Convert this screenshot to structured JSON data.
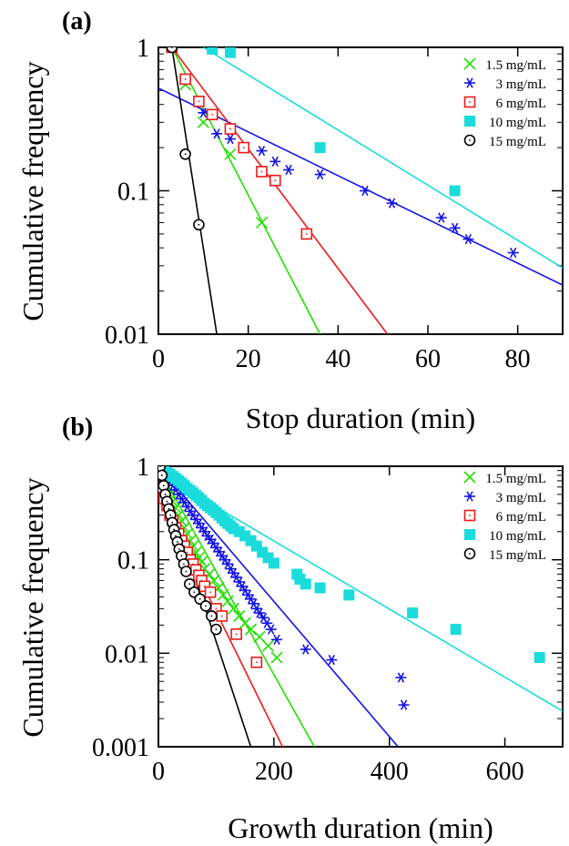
{
  "colors": {
    "s1_5": "#22e000",
    "s3": "#1414e6",
    "s6": "#ee1a1a",
    "s10": "#1adcdc",
    "s15": "#000000"
  },
  "chart_data": [
    {
      "type": "scatter",
      "panel_label": "(a)",
      "xlabel": "Stop duration (min)",
      "ylabel": "Cumulative frequency",
      "xlim": [
        0,
        90
      ],
      "ylim": [
        0.01,
        1
      ],
      "yscale": "log",
      "xticks": [
        0,
        20,
        40,
        60,
        80
      ],
      "xtick_labels": [
        "0",
        "20",
        "40",
        "60",
        "80"
      ],
      "yticks": [
        0.01,
        0.1,
        1
      ],
      "ytick_labels": [
        "0.01",
        "0.1",
        "1"
      ],
      "legend_position": "top-right",
      "series": [
        {
          "name": "1.5 mg/mL",
          "marker": "x",
          "color": "#22e000",
          "points": [
            [
              3,
              1.0
            ],
            [
              6,
              0.55
            ],
            [
              10,
              0.3
            ],
            [
              16,
              0.18
            ],
            [
              23,
              0.06
            ]
          ],
          "fit": [
            [
              3,
              1.0
            ],
            [
              36,
              0.01
            ]
          ]
        },
        {
          "name": "3 mg/mL",
          "marker": "star",
          "color": "#1414e6",
          "points": [
            [
              3,
              1.0
            ],
            [
              6,
              0.6
            ],
            [
              10,
              0.35
            ],
            [
              13,
              0.25
            ],
            [
              16,
              0.23
            ],
            [
              19,
              0.2
            ],
            [
              23,
              0.19
            ],
            [
              26,
              0.16
            ],
            [
              29,
              0.14
            ],
            [
              36,
              0.13
            ],
            [
              46,
              0.1
            ],
            [
              52,
              0.082
            ],
            [
              63,
              0.065
            ],
            [
              66,
              0.055
            ],
            [
              69,
              0.046
            ],
            [
              79,
              0.037
            ]
          ],
          "fit": [
            [
              0,
              0.52
            ],
            [
              90,
              0.022
            ]
          ]
        },
        {
          "name": "6 mg/mL",
          "marker": "square",
          "color": "#ee1a1a",
          "points": [
            [
              3,
              1.0
            ],
            [
              6,
              0.6
            ],
            [
              9,
              0.42
            ],
            [
              12,
              0.34
            ],
            [
              16,
              0.27
            ],
            [
              19,
              0.2
            ],
            [
              23,
              0.136
            ],
            [
              26,
              0.118
            ],
            [
              33,
              0.05
            ]
          ],
          "fit": [
            [
              3,
              1.0
            ],
            [
              51,
              0.01
            ]
          ]
        },
        {
          "name": "10 mg/mL",
          "marker": "filled-square",
          "color": "#1adcdc",
          "points": [
            [
              12,
              0.97
            ],
            [
              16,
              0.92
            ],
            [
              36,
              0.2
            ],
            [
              66,
              0.1
            ]
          ],
          "fit": [
            [
              10,
              1.0
            ],
            [
              90,
              0.029
            ]
          ]
        },
        {
          "name": "15 mg/mL",
          "marker": "circle",
          "color": "#000000",
          "points": [
            [
              3,
              1.0
            ],
            [
              6,
              0.18
            ],
            [
              9,
              0.058
            ]
          ],
          "fit": [
            [
              3,
              1.0
            ],
            [
              13,
              0.01
            ]
          ]
        }
      ]
    },
    {
      "type": "scatter",
      "panel_label": "(b)",
      "xlabel": "Growth duration (min)",
      "ylabel": "Cumulative frequency",
      "xlim": [
        0,
        700
      ],
      "ylim": [
        0.001,
        1
      ],
      "yscale": "log",
      "xticks": [
        0,
        200,
        400,
        600
      ],
      "xtick_labels": [
        "0",
        "200",
        "400",
        "600"
      ],
      "yticks": [
        0.001,
        0.01,
        0.1,
        1
      ],
      "ytick_labels": [
        "0.001",
        "0.01",
        "0.1",
        "1"
      ],
      "legend_position": "top-right",
      "series": [
        {
          "name": "1.5 mg/mL",
          "marker": "x",
          "color": "#22e000",
          "points": [
            [
              5,
              1.0
            ],
            [
              10,
              0.75
            ],
            [
              15,
              0.6
            ],
            [
              20,
              0.5
            ],
            [
              25,
              0.42
            ],
            [
              30,
              0.36
            ],
            [
              35,
              0.3
            ],
            [
              40,
              0.26
            ],
            [
              45,
              0.22
            ],
            [
              50,
              0.19
            ],
            [
              55,
              0.16
            ],
            [
              60,
              0.14
            ],
            [
              65,
              0.12
            ],
            [
              70,
              0.105
            ],
            [
              75,
              0.095
            ],
            [
              80,
              0.08
            ],
            [
              88,
              0.07
            ],
            [
              96,
              0.06
            ],
            [
              104,
              0.05
            ],
            [
              112,
              0.042
            ],
            [
              120,
              0.036
            ],
            [
              130,
              0.03
            ],
            [
              140,
              0.025
            ],
            [
              150,
              0.021
            ],
            [
              160,
              0.018
            ],
            [
              175,
              0.015
            ],
            [
              190,
              0.012
            ],
            [
              205,
              0.009
            ]
          ],
          "fit": [
            [
              0,
              0.95
            ],
            [
              270,
              0.001
            ]
          ]
        },
        {
          "name": "3 mg/mL",
          "marker": "star",
          "color": "#1414e6",
          "points": [
            [
              5,
              1.0
            ],
            [
              10,
              0.85
            ],
            [
              15,
              0.75
            ],
            [
              20,
              0.68
            ],
            [
              25,
              0.62
            ],
            [
              30,
              0.56
            ],
            [
              35,
              0.5
            ],
            [
              40,
              0.45
            ],
            [
              45,
              0.41
            ],
            [
              50,
              0.37
            ],
            [
              55,
              0.33
            ],
            [
              60,
              0.3
            ],
            [
              65,
              0.27
            ],
            [
              70,
              0.245
            ],
            [
              75,
              0.22
            ],
            [
              80,
              0.2
            ],
            [
              85,
              0.18
            ],
            [
              90,
              0.165
            ],
            [
              95,
              0.15
            ],
            [
              100,
              0.135
            ],
            [
              105,
              0.122
            ],
            [
              110,
              0.11
            ],
            [
              115,
              0.1
            ],
            [
              120,
              0.09
            ],
            [
              125,
              0.08
            ],
            [
              130,
              0.072
            ],
            [
              135,
              0.065
            ],
            [
              140,
              0.058
            ],
            [
              145,
              0.052
            ],
            [
              150,
              0.047
            ],
            [
              155,
              0.042
            ],
            [
              160,
              0.038
            ],
            [
              165,
              0.034
            ],
            [
              170,
              0.03
            ],
            [
              175,
              0.027
            ],
            [
              182,
              0.024
            ],
            [
              188,
              0.021
            ],
            [
              195,
              0.018
            ],
            [
              205,
              0.014
            ],
            [
              255,
              0.011
            ],
            [
              300,
              0.0085
            ],
            [
              420,
              0.0055
            ],
            [
              425,
              0.0028
            ]
          ],
          "fit": [
            [
              0,
              1.0
            ],
            [
              415,
              0.001
            ]
          ]
        },
        {
          "name": "6 mg/mL",
          "marker": "square",
          "color": "#ee1a1a",
          "points": [
            [
              5,
              0.6
            ],
            [
              10,
              0.45
            ],
            [
              15,
              0.38
            ],
            [
              20,
              0.3
            ],
            [
              25,
              0.26
            ],
            [
              30,
              0.22
            ],
            [
              35,
              0.19
            ],
            [
              40,
              0.16
            ],
            [
              45,
              0.14
            ],
            [
              50,
              0.12
            ],
            [
              55,
              0.1
            ],
            [
              60,
              0.09
            ],
            [
              65,
              0.078
            ],
            [
              70,
              0.068
            ],
            [
              75,
              0.06
            ],
            [
              80,
              0.052
            ],
            [
              90,
              0.045
            ],
            [
              100,
              0.03
            ],
            [
              110,
              0.025
            ],
            [
              135,
              0.016
            ],
            [
              170,
              0.008
            ]
          ],
          "fit": [
            [
              0,
              0.5
            ],
            [
              215,
              0.001
            ]
          ]
        },
        {
          "name": "10 mg/mL",
          "marker": "filled-square",
          "color": "#1adcdc",
          "points": [
            [
              5,
              1.0
            ],
            [
              10,
              0.9
            ],
            [
              15,
              0.85
            ],
            [
              20,
              0.82
            ],
            [
              25,
              0.78
            ],
            [
              30,
              0.74
            ],
            [
              35,
              0.7
            ],
            [
              40,
              0.66
            ],
            [
              45,
              0.62
            ],
            [
              50,
              0.58
            ],
            [
              55,
              0.55
            ],
            [
              60,
              0.52
            ],
            [
              65,
              0.49
            ],
            [
              70,
              0.46
            ],
            [
              75,
              0.43
            ],
            [
              80,
              0.4
            ],
            [
              85,
              0.38
            ],
            [
              90,
              0.36
            ],
            [
              95,
              0.34
            ],
            [
              100,
              0.32
            ],
            [
              105,
              0.3
            ],
            [
              110,
              0.28
            ],
            [
              115,
              0.26
            ],
            [
              120,
              0.245
            ],
            [
              125,
              0.23
            ],
            [
              130,
              0.215
            ],
            [
              140,
              0.2
            ],
            [
              150,
              0.18
            ],
            [
              160,
              0.16
            ],
            [
              170,
              0.14
            ],
            [
              180,
              0.12
            ],
            [
              190,
              0.105
            ],
            [
              200,
              0.092
            ],
            [
              240,
              0.07
            ],
            [
              245,
              0.062
            ],
            [
              255,
              0.055
            ],
            [
              280,
              0.05
            ],
            [
              330,
              0.042
            ],
            [
              440,
              0.027
            ],
            [
              515,
              0.018
            ],
            [
              660,
              0.009
            ]
          ],
          "fit": [
            [
              0,
              0.85
            ],
            [
              700,
              0.0024
            ]
          ]
        },
        {
          "name": "15 mg/mL",
          "marker": "circle",
          "color": "#000000",
          "points": [
            [
              3,
              1.0
            ],
            [
              6,
              0.8
            ],
            [
              9,
              0.62
            ],
            [
              12,
              0.5
            ],
            [
              15,
              0.42
            ],
            [
              18,
              0.35
            ],
            [
              21,
              0.3
            ],
            [
              24,
              0.25
            ],
            [
              27,
              0.21
            ],
            [
              30,
              0.18
            ],
            [
              33,
              0.155
            ],
            [
              36,
              0.13
            ],
            [
              40,
              0.11
            ],
            [
              44,
              0.09
            ],
            [
              48,
              0.075
            ],
            [
              54,
              0.055
            ],
            [
              62,
              0.045
            ],
            [
              72,
              0.038
            ],
            [
              82,
              0.032
            ],
            [
              92,
              0.025
            ],
            [
              100,
              0.018
            ]
          ],
          "fit": [
            [
              0,
              1.0
            ],
            [
              160,
              0.001
            ]
          ]
        }
      ]
    }
  ]
}
